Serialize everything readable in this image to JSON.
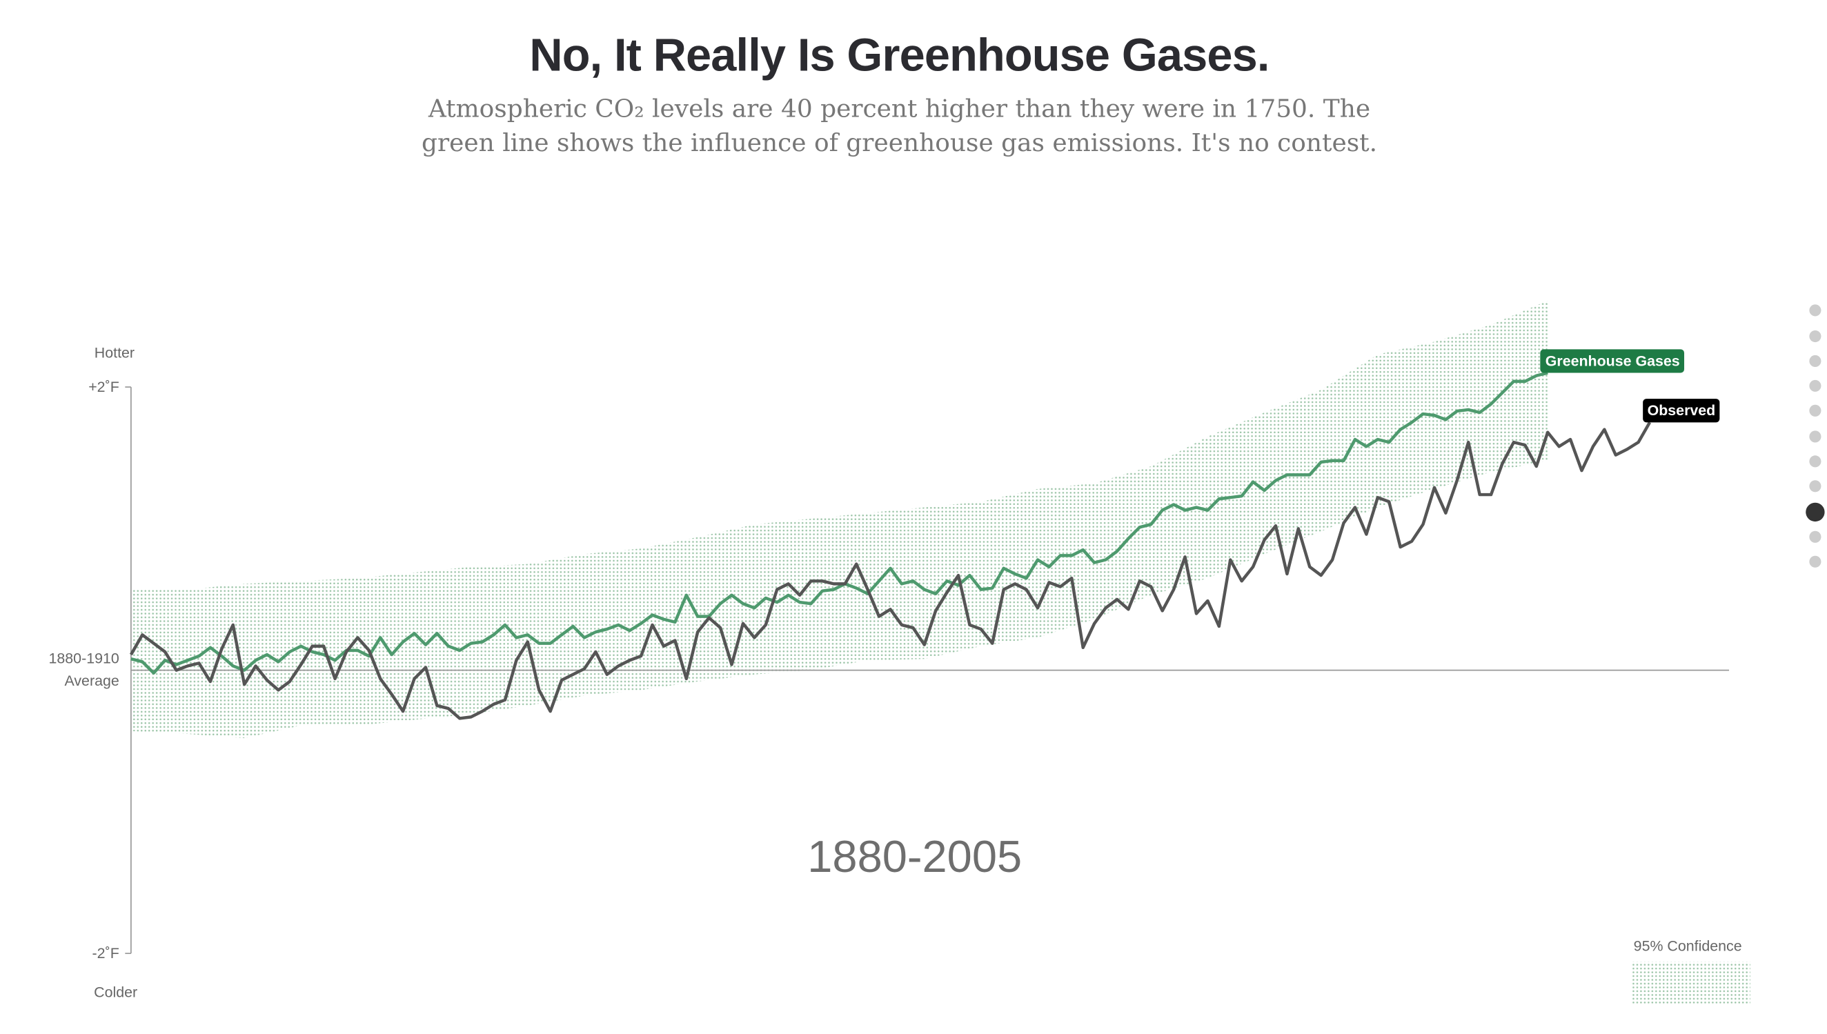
{
  "chart_data": {
    "type": "line",
    "title": "No, It Really Is Greenhouse Gases.",
    "subtitle": "Atmospheric CO₂ levels are 40 percent higher than they were in 1750. The green line shows the influence of greenhouse gas emissions. It's no contest.",
    "period_label": "1880-2005",
    "y_top_label": "Hotter",
    "y_bottom_label": "Colder",
    "xlim": [
      1880,
      2021
    ],
    "ylim": [
      -2,
      2
    ],
    "yticks": [
      {
        "value": 2,
        "label": "+2˚F"
      },
      {
        "value": 0,
        "label": "1880-1910\nAverage"
      },
      {
        "value": -2,
        "label": "-2˚F"
      }
    ],
    "series": [
      {
        "name": "Greenhouse Gases",
        "color": "#4e9a6e",
        "label_color": "#1e7b45",
        "x": [
          1880,
          1881,
          1882,
          1883,
          1884,
          1885,
          1886,
          1887,
          1888,
          1889,
          1890,
          1891,
          1892,
          1893,
          1894,
          1895,
          1896,
          1897,
          1898,
          1899,
          1900,
          1901,
          1902,
          1903,
          1904,
          1905,
          1906,
          1907,
          1908,
          1909,
          1910,
          1911,
          1912,
          1913,
          1914,
          1915,
          1916,
          1917,
          1918,
          1919,
          1920,
          1921,
          1922,
          1923,
          1924,
          1925,
          1926,
          1927,
          1928,
          1929,
          1930,
          1931,
          1932,
          1933,
          1934,
          1935,
          1936,
          1937,
          1938,
          1939,
          1940,
          1941,
          1942,
          1943,
          1944,
          1945,
          1946,
          1947,
          1948,
          1949,
          1950,
          1951,
          1952,
          1953,
          1954,
          1955,
          1956,
          1957,
          1958,
          1959,
          1960,
          1961,
          1962,
          1963,
          1964,
          1965,
          1966,
          1967,
          1968,
          1969,
          1970,
          1971,
          1972,
          1973,
          1974,
          1975,
          1976,
          1977,
          1978,
          1979,
          1980,
          1981,
          1982,
          1983,
          1984,
          1985,
          1986,
          1987,
          1988,
          1989,
          1990,
          1991,
          1992,
          1993,
          1994,
          1995,
          1996,
          1997,
          1998,
          1999,
          2000,
          2001,
          2002,
          2003,
          2004,
          2005
        ],
        "values": [
          0.08,
          0.06,
          -0.02,
          0.07,
          0.04,
          0.07,
          0.1,
          0.16,
          0.1,
          0.03,
          0.0,
          0.07,
          0.11,
          0.06,
          0.13,
          0.17,
          0.13,
          0.11,
          0.07,
          0.14,
          0.14,
          0.1,
          0.23,
          0.11,
          0.2,
          0.26,
          0.18,
          0.26,
          0.17,
          0.14,
          0.19,
          0.2,
          0.25,
          0.32,
          0.23,
          0.25,
          0.19,
          0.19,
          0.25,
          0.31,
          0.23,
          0.27,
          0.29,
          0.32,
          0.28,
          0.33,
          0.39,
          0.36,
          0.34,
          0.53,
          0.38,
          0.38,
          0.47,
          0.53,
          0.47,
          0.44,
          0.51,
          0.48,
          0.53,
          0.48,
          0.47,
          0.56,
          0.57,
          0.61,
          0.58,
          0.54,
          0.63,
          0.72,
          0.61,
          0.63,
          0.57,
          0.54,
          0.63,
          0.6,
          0.67,
          0.57,
          0.58,
          0.72,
          0.68,
          0.65,
          0.78,
          0.73,
          0.81,
          0.81,
          0.85,
          0.76,
          0.78,
          0.84,
          0.93,
          1.01,
          1.03,
          1.13,
          1.17,
          1.13,
          1.15,
          1.13,
          1.21,
          1.22,
          1.23,
          1.33,
          1.27,
          1.34,
          1.38,
          1.38,
          1.38,
          1.47,
          1.48,
          1.48,
          1.63,
          1.58,
          1.63,
          1.61,
          1.7,
          1.75,
          1.81,
          1.8,
          1.77,
          1.83,
          1.84,
          1.82,
          1.88,
          1.96,
          2.04,
          2.04,
          2.08,
          2.1
        ]
      },
      {
        "name": "Observed",
        "color": "#555555",
        "label_color": "#000000",
        "x": [
          1880,
          1881,
          1882,
          1883,
          1884,
          1885,
          1886,
          1887,
          1888,
          1889,
          1890,
          1891,
          1892,
          1893,
          1894,
          1895,
          1896,
          1897,
          1898,
          1899,
          1900,
          1901,
          1902,
          1903,
          1904,
          1905,
          1906,
          1907,
          1908,
          1909,
          1910,
          1911,
          1912,
          1913,
          1914,
          1915,
          1916,
          1917,
          1918,
          1919,
          1920,
          1921,
          1922,
          1923,
          1924,
          1925,
          1926,
          1927,
          1928,
          1929,
          1930,
          1931,
          1932,
          1933,
          1934,
          1935,
          1936,
          1937,
          1938,
          1939,
          1940,
          1941,
          1942,
          1943,
          1944,
          1945,
          1946,
          1947,
          1948,
          1949,
          1950,
          1951,
          1952,
          1953,
          1954,
          1955,
          1956,
          1957,
          1958,
          1959,
          1960,
          1961,
          1962,
          1963,
          1964,
          1965,
          1966,
          1967,
          1968,
          1969,
          1970,
          1971,
          1972,
          1973,
          1974,
          1975,
          1976,
          1977,
          1978,
          1979,
          1980,
          1981,
          1982,
          1983,
          1984,
          1985,
          1986,
          1987,
          1988,
          1989,
          1990,
          1991,
          1992,
          1993,
          1994,
          1995,
          1996,
          1997,
          1998,
          1999,
          2000,
          2001,
          2002,
          2003,
          2004,
          2005,
          2006,
          2007,
          2008,
          2009,
          2010,
          2011,
          2012,
          2013,
          2014
        ],
        "values": [
          0.11,
          0.25,
          0.19,
          0.13,
          0.0,
          0.03,
          0.05,
          -0.08,
          0.15,
          0.32,
          -0.1,
          0.03,
          -0.07,
          -0.14,
          -0.08,
          0.04,
          0.17,
          0.17,
          -0.06,
          0.13,
          0.23,
          0.14,
          -0.06,
          -0.17,
          -0.29,
          -0.06,
          0.02,
          -0.25,
          -0.27,
          -0.34,
          -0.33,
          -0.29,
          -0.24,
          -0.21,
          0.07,
          0.2,
          -0.14,
          -0.29,
          -0.07,
          -0.03,
          0.01,
          0.13,
          -0.03,
          0.03,
          0.07,
          0.1,
          0.32,
          0.17,
          0.21,
          -0.06,
          0.27,
          0.37,
          0.3,
          0.04,
          0.33,
          0.23,
          0.32,
          0.57,
          0.61,
          0.53,
          0.63,
          0.63,
          0.61,
          0.61,
          0.75,
          0.57,
          0.38,
          0.43,
          0.32,
          0.3,
          0.18,
          0.42,
          0.55,
          0.67,
          0.32,
          0.29,
          0.19,
          0.57,
          0.61,
          0.57,
          0.44,
          0.62,
          0.59,
          0.65,
          0.16,
          0.33,
          0.44,
          0.5,
          0.43,
          0.63,
          0.59,
          0.42,
          0.57,
          0.8,
          0.4,
          0.49,
          0.31,
          0.78,
          0.63,
          0.73,
          0.92,
          1.02,
          0.68,
          1.0,
          0.73,
          0.67,
          0.78,
          1.04,
          1.15,
          0.96,
          1.22,
          1.19,
          0.87,
          0.91,
          1.03,
          1.29,
          1.11,
          1.34,
          1.61,
          1.24,
          1.24,
          1.46,
          1.61,
          1.59,
          1.44,
          1.68,
          1.58,
          1.63,
          1.41,
          1.58,
          1.7,
          1.52,
          1.56,
          1.61,
          1.75
        ]
      }
    ],
    "band": {
      "name": "95% Confidence",
      "color": "#9cc5a8",
      "x": [
        1880,
        1885,
        1890,
        1895,
        1900,
        1905,
        1910,
        1915,
        1920,
        1925,
        1930,
        1935,
        1940,
        1945,
        1950,
        1955,
        1960,
        1965,
        1970,
        1975,
        1980,
        1985,
        1990,
        1995,
        2000,
        2005
      ],
      "lower": [
        -0.43,
        -0.45,
        -0.48,
        -0.39,
        -0.39,
        -0.35,
        -0.31,
        -0.25,
        -0.18,
        -0.14,
        -0.08,
        -0.03,
        0,
        0.07,
        0.08,
        0.17,
        0.23,
        0.36,
        0.53,
        0.65,
        0.82,
        0.98,
        1.15,
        1.28,
        1.4,
        1.48
      ],
      "upper": [
        0.57,
        0.57,
        0.61,
        0.63,
        0.65,
        0.69,
        0.73,
        0.75,
        0.82,
        0.86,
        0.94,
        1.03,
        1.07,
        1.11,
        1.15,
        1.19,
        1.28,
        1.32,
        1.44,
        1.65,
        1.82,
        1.98,
        2.23,
        2.32,
        2.44,
        2.61
      ]
    }
  }
}
